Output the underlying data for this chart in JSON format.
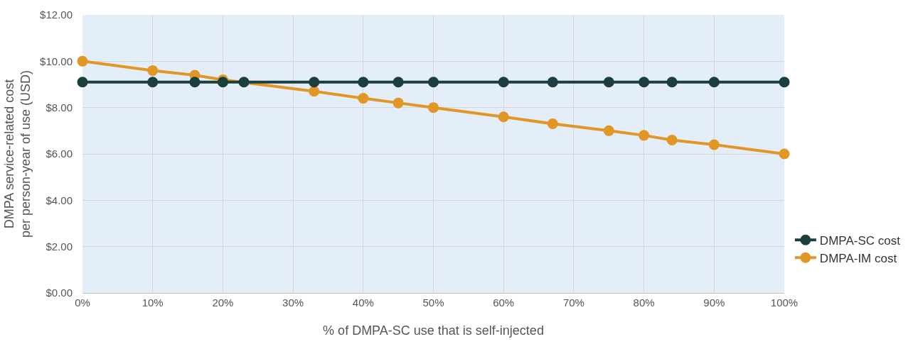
{
  "chart_data": {
    "type": "line",
    "xlabel": "% of DMPA-SC use that is self-injected",
    "ylabel": "DMPA service-related cost per person-year of use (USD)",
    "xlim": [
      0,
      100
    ],
    "xticks": [
      {
        "value": 0,
        "label": "0%"
      },
      {
        "value": 10,
        "label": "10%"
      },
      {
        "value": 20,
        "label": "20%"
      },
      {
        "value": 30,
        "label": "30%"
      },
      {
        "value": 40,
        "label": "40%"
      },
      {
        "value": 50,
        "label": "50%"
      },
      {
        "value": 60,
        "label": "60%"
      },
      {
        "value": 70,
        "label": "70%"
      },
      {
        "value": 80,
        "label": "80%"
      },
      {
        "value": 90,
        "label": "90%"
      },
      {
        "value": 100,
        "label": "100%"
      }
    ],
    "ylim": [
      0,
      12
    ],
    "yticks": [
      {
        "value": 0,
        "label": "$0.00"
      },
      {
        "value": 2,
        "label": "$2.00"
      },
      {
        "value": 4,
        "label": "$4.00"
      },
      {
        "value": 6,
        "label": "$6.00"
      },
      {
        "value": 8,
        "label": "$8.00"
      },
      {
        "value": 10,
        "label": "$10.00"
      },
      {
        "value": 12,
        "label": "$12.00"
      }
    ],
    "grid": true,
    "legend": "right",
    "marker": "circle",
    "line_style": "solid",
    "series": [
      {
        "name": "DMPA-SC cost",
        "color": "#1a3f3e",
        "x": [
          0,
          10,
          16,
          20,
          23,
          33,
          40,
          45,
          50,
          60,
          67,
          75,
          80,
          84,
          90,
          100
        ],
        "values": [
          9.1,
          9.1,
          9.1,
          9.1,
          9.1,
          9.1,
          9.1,
          9.1,
          9.1,
          9.1,
          9.1,
          9.1,
          9.1,
          9.1,
          9.1,
          9.1
        ]
      },
      {
        "name": "DMPA-IM cost",
        "color": "#e29625",
        "x": [
          0,
          10,
          16,
          20,
          33,
          40,
          45,
          50,
          60,
          67,
          75,
          80,
          84,
          90,
          100
        ],
        "values": [
          10.0,
          9.6,
          9.4,
          9.2,
          8.7,
          8.4,
          8.2,
          8.0,
          7.6,
          7.3,
          7.0,
          6.8,
          6.6,
          6.4,
          6.0
        ]
      }
    ]
  }
}
